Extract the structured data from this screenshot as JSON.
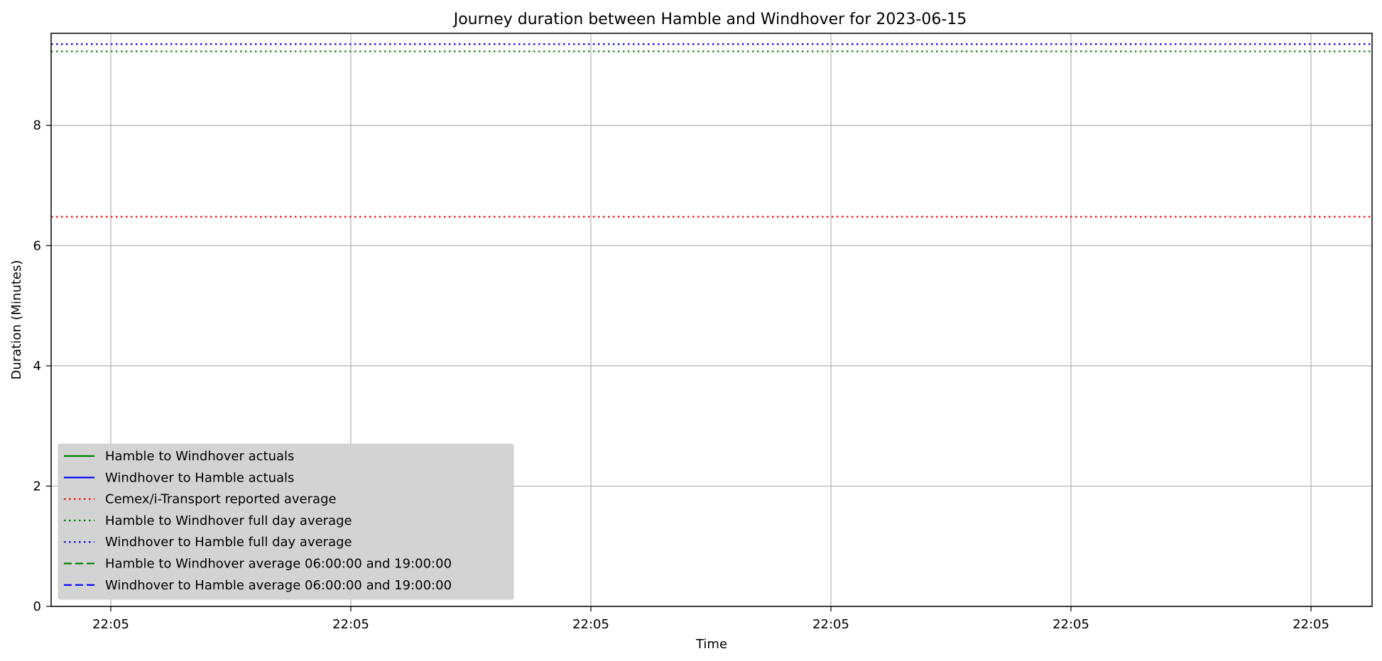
{
  "chart_data": {
    "type": "line",
    "title": "Journey duration between Hamble and Windhover for 2023-06-15",
    "xlabel": "Time",
    "ylabel": "Duration  (Minutes)",
    "x_tick_labels": [
      "22:05",
      "22:05",
      "22:05",
      "22:05",
      "22:05",
      "22:05"
    ],
    "y_ticks": [
      0,
      2,
      4,
      6,
      8
    ],
    "ylim": [
      0,
      9.53
    ],
    "grid": true,
    "legend_placement": "lower-left",
    "series": [
      {
        "name": "Hamble to Windhover actuals",
        "kind": "actuals",
        "color": "#008000",
        "style": "solid",
        "values": []
      },
      {
        "name": "Windhover to Hamble actuals",
        "kind": "actuals",
        "color": "#0000ff",
        "style": "solid",
        "values": []
      },
      {
        "name": "Cemex/i-Transport reported average",
        "kind": "hline",
        "color": "#ff0000",
        "style": "dotted",
        "value": 6.48
      },
      {
        "name": "Hamble to Windhover full day average",
        "kind": "hline",
        "color": "#008000",
        "style": "dotted",
        "value": 9.23
      },
      {
        "name": "Windhover to Hamble full day average",
        "kind": "hline",
        "color": "#0000ff",
        "style": "dotted",
        "value": 9.35
      },
      {
        "name": "Hamble to Windhover average 06:00:00 and 19:00:00",
        "kind": "hline",
        "color": "#008000",
        "style": "dashed",
        "value": null
      },
      {
        "name": "Windhover to Hamble average 06:00:00 and 19:00:00",
        "kind": "hline",
        "color": "#0000ff",
        "style": "dashed",
        "value": null
      }
    ]
  }
}
